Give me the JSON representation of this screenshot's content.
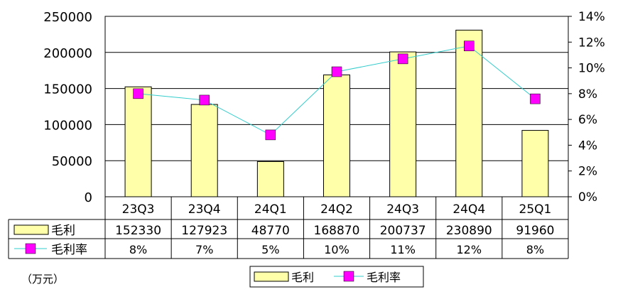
{
  "chart_data": {
    "type": "bar",
    "categories": [
      "23Q3",
      "23Q4",
      "24Q1",
      "24Q2",
      "24Q3",
      "24Q4",
      "25Q1"
    ],
    "series": [
      {
        "name": "毛利",
        "type": "bar",
        "axis": "left",
        "values": [
          152330,
          127923,
          48770,
          168870,
          200737,
          230890,
          91960
        ],
        "labels": [
          "152330",
          "127923",
          "48770",
          "168870",
          "200737",
          "230890",
          "91960"
        ],
        "color": "#ffffaa"
      },
      {
        "name": "毛利率",
        "type": "line",
        "axis": "right",
        "values": [
          8.0,
          7.5,
          4.8,
          9.7,
          10.7,
          11.7,
          7.6
        ],
        "labels": [
          "8%",
          "7%",
          "5%",
          "10%",
          "11%",
          "12%",
          "8%"
        ],
        "color": "#ff00ff",
        "line_color": "#33cccc"
      }
    ],
    "ylim_left": [
      0,
      250000
    ],
    "yticks_left": [
      "0",
      "50000",
      "100000",
      "150000",
      "200000",
      "250000"
    ],
    "ylim_right": [
      0,
      14
    ],
    "yticks_right": [
      "0%",
      "2%",
      "4%",
      "6%",
      "8%",
      "10%",
      "12%",
      "14%"
    ],
    "unit_label": "（万元）",
    "grid": true,
    "legend_position": "bottom-center"
  }
}
